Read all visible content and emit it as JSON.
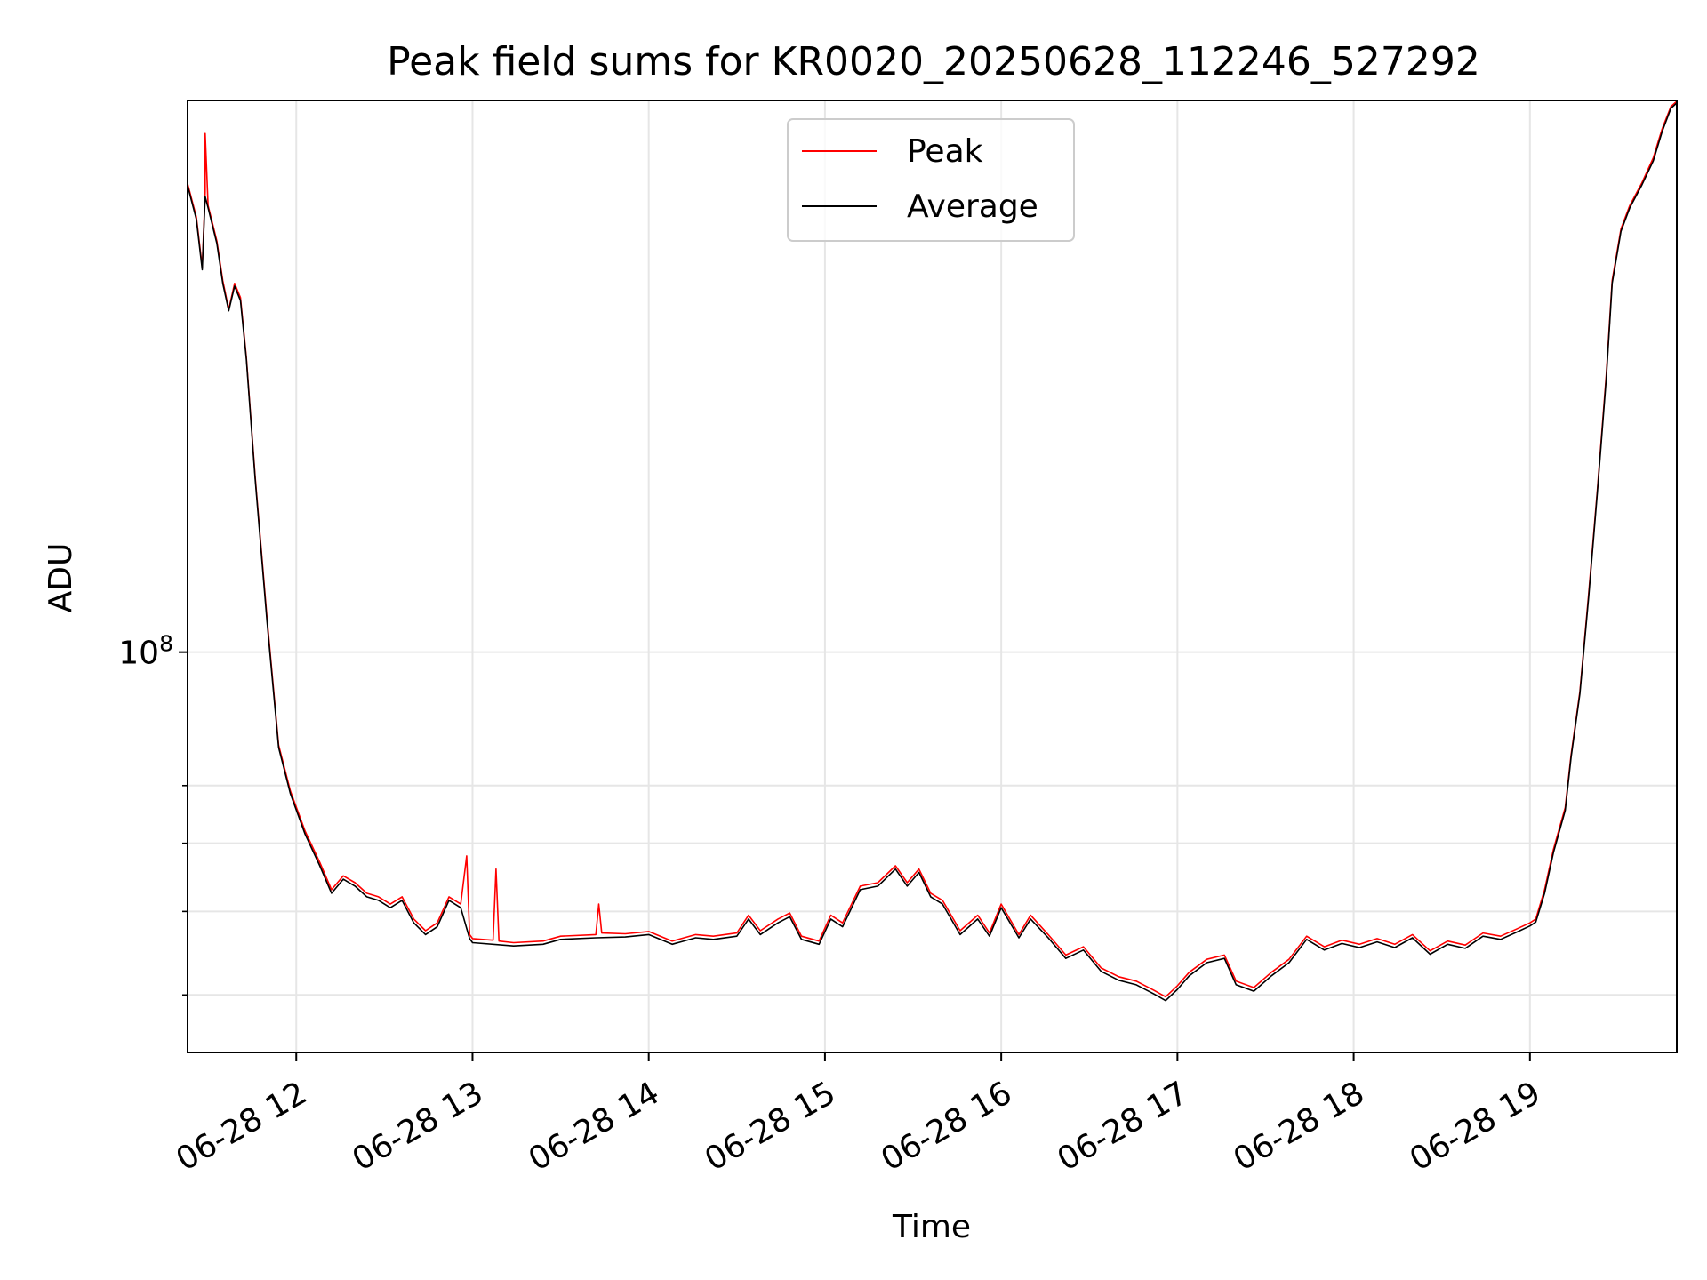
{
  "chart_data": {
    "type": "line",
    "title": "Peak field sums for KR0020_20250628_112246_527292",
    "xlabel": "Time",
    "ylabel": "ADU",
    "y_scale": "log",
    "grid": true,
    "legend_position": "upper center",
    "x_tick_labels": [
      "06-28 12",
      "06-28 13",
      "06-28 14",
      "06-28 15",
      "06-28 16",
      "06-28 17",
      "06-28 18",
      "06-28 19"
    ],
    "x_ticks": [
      "2025-06-28 12:00",
      "2025-06-28 13:00",
      "2025-06-28 14:00",
      "2025-06-28 15:00",
      "2025-06-28 16:00",
      "2025-06-28 17:00",
      "2025-06-28 18:00",
      "2025-06-28 19:00"
    ],
    "xlim": [
      "2025-06-28 11:23",
      "2025-06-28 19:50"
    ],
    "ylim": [
      34300000,
      437000000
    ],
    "y_major_ticks": [
      {
        "value": 100000000,
        "base": "10",
        "exp": "8"
      }
    ],
    "y_minor_ticks": [
      40000000,
      50000000,
      60000000,
      70000000
    ],
    "series": [
      {
        "name": "Peak",
        "color": "#ff0000",
        "points": [
          [
            "2025-06-28 11:23",
            350000000
          ],
          [
            "2025-06-28 11:26",
            320000000
          ],
          [
            "2025-06-28 11:28",
            280000000
          ],
          [
            "2025-06-28 11:29",
            342000000
          ],
          [
            "2025-06-28 11:29",
            400000000
          ],
          [
            "2025-06-28 11:30",
            330000000
          ],
          [
            "2025-06-28 11:33",
            300000000
          ],
          [
            "2025-06-28 11:35",
            270000000
          ],
          [
            "2025-06-28 11:37",
            250000000
          ],
          [
            "2025-06-28 11:39",
            268000000
          ],
          [
            "2025-06-28 11:41",
            258000000
          ],
          [
            "2025-06-28 11:43",
            220000000
          ],
          [
            "2025-06-28 11:46",
            160000000
          ],
          [
            "2025-06-28 11:50",
            110000000
          ],
          [
            "2025-06-28 11:54",
            78000000
          ],
          [
            "2025-06-28 11:58",
            69000000
          ],
          [
            "2025-06-28 12:03",
            62000000
          ],
          [
            "2025-06-28 12:08",
            57000000
          ],
          [
            "2025-06-28 12:12",
            53000000
          ],
          [
            "2025-06-28 12:16",
            55000000
          ],
          [
            "2025-06-28 12:20",
            54000000
          ],
          [
            "2025-06-28 12:24",
            52500000
          ],
          [
            "2025-06-28 12:28",
            52000000
          ],
          [
            "2025-06-28 12:32",
            51000000
          ],
          [
            "2025-06-28 12:36",
            52000000
          ],
          [
            "2025-06-28 12:40",
            49000000
          ],
          [
            "2025-06-28 12:44",
            47500000
          ],
          [
            "2025-06-28 12:48",
            48500000
          ],
          [
            "2025-06-28 12:52",
            52000000
          ],
          [
            "2025-06-28 12:56",
            51000000
          ],
          [
            "2025-06-28 12:58",
            58000000
          ],
          [
            "2025-06-28 12:59",
            47000000
          ],
          [
            "2025-06-28 13:00",
            46500000
          ],
          [
            "2025-06-28 13:07",
            46300000
          ],
          [
            "2025-06-28 13:08",
            56000000
          ],
          [
            "2025-06-28 13:09",
            46200000
          ],
          [
            "2025-06-28 13:14",
            46000000
          ],
          [
            "2025-06-28 13:24",
            46200000
          ],
          [
            "2025-06-28 13:30",
            46800000
          ],
          [
            "2025-06-28 13:42",
            47000000
          ],
          [
            "2025-06-28 13:43",
            51000000
          ],
          [
            "2025-06-28 13:44",
            47200000
          ],
          [
            "2025-06-28 13:52",
            47100000
          ],
          [
            "2025-06-28 14:00",
            47400000
          ],
          [
            "2025-06-28 14:08",
            46200000
          ],
          [
            "2025-06-28 14:16",
            47000000
          ],
          [
            "2025-06-28 14:22",
            46800000
          ],
          [
            "2025-06-28 14:30",
            47200000
          ],
          [
            "2025-06-28 14:34",
            49500000
          ],
          [
            "2025-06-28 14:38",
            47500000
          ],
          [
            "2025-06-28 14:44",
            49000000
          ],
          [
            "2025-06-28 14:48",
            49800000
          ],
          [
            "2025-06-28 14:52",
            46800000
          ],
          [
            "2025-06-28 14:58",
            46200000
          ],
          [
            "2025-06-28 15:02",
            49500000
          ],
          [
            "2025-06-28 15:06",
            48500000
          ],
          [
            "2025-06-28 15:12",
            53500000
          ],
          [
            "2025-06-28 15:18",
            54000000
          ],
          [
            "2025-06-28 15:24",
            56500000
          ],
          [
            "2025-06-28 15:28",
            54000000
          ],
          [
            "2025-06-28 15:32",
            56000000
          ],
          [
            "2025-06-28 15:36",
            52500000
          ],
          [
            "2025-06-28 15:40",
            51500000
          ],
          [
            "2025-06-28 15:46",
            47500000
          ],
          [
            "2025-06-28 15:52",
            49500000
          ],
          [
            "2025-06-28 15:56",
            47200000
          ],
          [
            "2025-06-28 16:00",
            51000000
          ],
          [
            "2025-06-28 16:06",
            47000000
          ],
          [
            "2025-06-28 16:10",
            49500000
          ],
          [
            "2025-06-28 16:16",
            47000000
          ],
          [
            "2025-06-28 16:22",
            44500000
          ],
          [
            "2025-06-28 16:28",
            45500000
          ],
          [
            "2025-06-28 16:34",
            43000000
          ],
          [
            "2025-06-28 16:40",
            42000000
          ],
          [
            "2025-06-28 16:46",
            41500000
          ],
          [
            "2025-06-28 16:52",
            40500000
          ],
          [
            "2025-06-28 16:56",
            39800000
          ],
          [
            "2025-06-28 17:00",
            41000000
          ],
          [
            "2025-06-28 17:04",
            42500000
          ],
          [
            "2025-06-28 17:10",
            44000000
          ],
          [
            "2025-06-28 17:16",
            44500000
          ],
          [
            "2025-06-28 17:20",
            41500000
          ],
          [
            "2025-06-28 17:26",
            40800000
          ],
          [
            "2025-06-28 17:32",
            42500000
          ],
          [
            "2025-06-28 17:38",
            44000000
          ],
          [
            "2025-06-28 17:44",
            46800000
          ],
          [
            "2025-06-28 17:50",
            45500000
          ],
          [
            "2025-06-28 17:56",
            46300000
          ],
          [
            "2025-06-28 18:02",
            45800000
          ],
          [
            "2025-06-28 18:08",
            46500000
          ],
          [
            "2025-06-28 18:14",
            45800000
          ],
          [
            "2025-06-28 18:20",
            47000000
          ],
          [
            "2025-06-28 18:26",
            45000000
          ],
          [
            "2025-06-28 18:32",
            46200000
          ],
          [
            "2025-06-28 18:38",
            45700000
          ],
          [
            "2025-06-28 18:44",
            47200000
          ],
          [
            "2025-06-28 18:50",
            46800000
          ],
          [
            "2025-06-28 18:56",
            47800000
          ],
          [
            "2025-06-28 19:00",
            48500000
          ],
          [
            "2025-06-28 19:02",
            49000000
          ],
          [
            "2025-06-28 19:05",
            53000000
          ],
          [
            "2025-06-28 19:08",
            59000000
          ],
          [
            "2025-06-28 19:12",
            66000000
          ],
          [
            "2025-06-28 19:14",
            76000000
          ],
          [
            "2025-06-28 19:17",
            90000000
          ],
          [
            "2025-06-28 19:20",
            117000000
          ],
          [
            "2025-06-28 19:23",
            155000000
          ],
          [
            "2025-06-28 19:26",
            210000000
          ],
          [
            "2025-06-28 19:28",
            270000000
          ],
          [
            "2025-06-28 19:31",
            310000000
          ],
          [
            "2025-06-28 19:34",
            330000000
          ],
          [
            "2025-06-28 19:38",
            350000000
          ],
          [
            "2025-06-28 19:42",
            375000000
          ],
          [
            "2025-06-28 19:45",
            405000000
          ],
          [
            "2025-06-28 19:48",
            430000000
          ],
          [
            "2025-06-28 19:50",
            436000000
          ]
        ]
      },
      {
        "name": "Average",
        "color": "#000000",
        "points": [
          [
            "2025-06-28 11:23",
            348000000
          ],
          [
            "2025-06-28 11:26",
            318000000
          ],
          [
            "2025-06-28 11:28",
            278000000
          ],
          [
            "2025-06-28 11:29",
            338000000
          ],
          [
            "2025-06-28 11:30",
            328000000
          ],
          [
            "2025-06-28 11:33",
            298000000
          ],
          [
            "2025-06-28 11:35",
            268000000
          ],
          [
            "2025-06-28 11:37",
            249000000
          ],
          [
            "2025-06-28 11:39",
            266000000
          ],
          [
            "2025-06-28 11:41",
            256000000
          ],
          [
            "2025-06-28 11:43",
            219000000
          ],
          [
            "2025-06-28 11:46",
            159000000
          ],
          [
            "2025-06-28 11:50",
            109000000
          ],
          [
            "2025-06-28 11:54",
            77500000
          ],
          [
            "2025-06-28 11:58",
            68500000
          ],
          [
            "2025-06-28 12:03",
            61500000
          ],
          [
            "2025-06-28 12:08",
            56500000
          ],
          [
            "2025-06-28 12:12",
            52500000
          ],
          [
            "2025-06-28 12:16",
            54500000
          ],
          [
            "2025-06-28 12:20",
            53500000
          ],
          [
            "2025-06-28 12:24",
            52000000
          ],
          [
            "2025-06-28 12:28",
            51500000
          ],
          [
            "2025-06-28 12:32",
            50500000
          ],
          [
            "2025-06-28 12:36",
            51500000
          ],
          [
            "2025-06-28 12:40",
            48500000
          ],
          [
            "2025-06-28 12:44",
            47000000
          ],
          [
            "2025-06-28 12:48",
            48000000
          ],
          [
            "2025-06-28 12:52",
            51500000
          ],
          [
            "2025-06-28 12:56",
            50500000
          ],
          [
            "2025-06-28 12:59",
            46500000
          ],
          [
            "2025-06-28 13:00",
            46000000
          ],
          [
            "2025-06-28 13:14",
            45600000
          ],
          [
            "2025-06-28 13:24",
            45800000
          ],
          [
            "2025-06-28 13:30",
            46400000
          ],
          [
            "2025-06-28 13:42",
            46600000
          ],
          [
            "2025-06-28 13:52",
            46700000
          ],
          [
            "2025-06-28 14:00",
            47000000
          ],
          [
            "2025-06-28 14:08",
            45800000
          ],
          [
            "2025-06-28 14:16",
            46600000
          ],
          [
            "2025-06-28 14:22",
            46400000
          ],
          [
            "2025-06-28 14:30",
            46800000
          ],
          [
            "2025-06-28 14:34",
            49000000
          ],
          [
            "2025-06-28 14:38",
            47000000
          ],
          [
            "2025-06-28 14:44",
            48500000
          ],
          [
            "2025-06-28 14:48",
            49300000
          ],
          [
            "2025-06-28 14:52",
            46400000
          ],
          [
            "2025-06-28 14:58",
            45800000
          ],
          [
            "2025-06-28 15:02",
            49000000
          ],
          [
            "2025-06-28 15:06",
            48000000
          ],
          [
            "2025-06-28 15:12",
            53000000
          ],
          [
            "2025-06-28 15:18",
            53500000
          ],
          [
            "2025-06-28 15:24",
            56000000
          ],
          [
            "2025-06-28 15:28",
            53500000
          ],
          [
            "2025-06-28 15:32",
            55500000
          ],
          [
            "2025-06-28 15:36",
            52000000
          ],
          [
            "2025-06-28 15:40",
            51000000
          ],
          [
            "2025-06-28 15:46",
            47000000
          ],
          [
            "2025-06-28 15:52",
            49000000
          ],
          [
            "2025-06-28 15:56",
            46800000
          ],
          [
            "2025-06-28 16:00",
            50500000
          ],
          [
            "2025-06-28 16:06",
            46600000
          ],
          [
            "2025-06-28 16:10",
            49000000
          ],
          [
            "2025-06-28 16:16",
            46600000
          ],
          [
            "2025-06-28 16:22",
            44100000
          ],
          [
            "2025-06-28 16:28",
            45100000
          ],
          [
            "2025-06-28 16:34",
            42600000
          ],
          [
            "2025-06-28 16:40",
            41600000
          ],
          [
            "2025-06-28 16:46",
            41100000
          ],
          [
            "2025-06-28 16:52",
            40100000
          ],
          [
            "2025-06-28 16:56",
            39400000
          ],
          [
            "2025-06-28 17:00",
            40600000
          ],
          [
            "2025-06-28 17:04",
            42100000
          ],
          [
            "2025-06-28 17:10",
            43600000
          ],
          [
            "2025-06-28 17:16",
            44100000
          ],
          [
            "2025-06-28 17:20",
            41100000
          ],
          [
            "2025-06-28 17:26",
            40400000
          ],
          [
            "2025-06-28 17:32",
            42100000
          ],
          [
            "2025-06-28 17:38",
            43600000
          ],
          [
            "2025-06-28 17:44",
            46400000
          ],
          [
            "2025-06-28 17:50",
            45100000
          ],
          [
            "2025-06-28 17:56",
            45900000
          ],
          [
            "2025-06-28 18:02",
            45400000
          ],
          [
            "2025-06-28 18:08",
            46100000
          ],
          [
            "2025-06-28 18:14",
            45400000
          ],
          [
            "2025-06-28 18:20",
            46600000
          ],
          [
            "2025-06-28 18:26",
            44600000
          ],
          [
            "2025-06-28 18:32",
            45800000
          ],
          [
            "2025-06-28 18:38",
            45300000
          ],
          [
            "2025-06-28 18:44",
            46800000
          ],
          [
            "2025-06-28 18:50",
            46400000
          ],
          [
            "2025-06-28 18:56",
            47400000
          ],
          [
            "2025-06-28 19:00",
            48100000
          ],
          [
            "2025-06-28 19:02",
            48600000
          ],
          [
            "2025-06-28 19:05",
            52500000
          ],
          [
            "2025-06-28 19:08",
            58500000
          ],
          [
            "2025-06-28 19:12",
            65500000
          ],
          [
            "2025-06-28 19:14",
            75500000
          ],
          [
            "2025-06-28 19:17",
            89500000
          ],
          [
            "2025-06-28 19:20",
            116000000
          ],
          [
            "2025-06-28 19:23",
            154000000
          ],
          [
            "2025-06-28 19:26",
            208000000
          ],
          [
            "2025-06-28 19:28",
            268000000
          ],
          [
            "2025-06-28 19:31",
            308000000
          ],
          [
            "2025-06-28 19:34",
            328000000
          ],
          [
            "2025-06-28 19:38",
            348000000
          ],
          [
            "2025-06-28 19:42",
            372000000
          ],
          [
            "2025-06-28 19:45",
            402000000
          ],
          [
            "2025-06-28 19:48",
            428000000
          ],
          [
            "2025-06-28 19:50",
            434000000
          ]
        ]
      }
    ]
  }
}
